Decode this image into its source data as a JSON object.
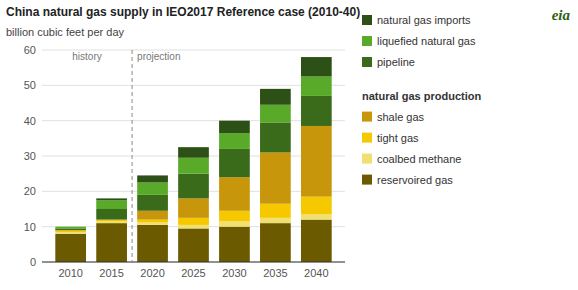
{
  "chart_data": {
    "type": "bar",
    "stacked": true,
    "title": "China natural gas supply in IEO2017 Reference case (2010-40)",
    "ylabel": "billion cubic feet per day",
    "x": [
      2010,
      2015,
      2020,
      2025,
      2030,
      2035,
      2040
    ],
    "xlim": [
      2006.5,
      2043.5
    ],
    "xticks": [
      2010,
      2015,
      2020,
      2025,
      2030,
      2035,
      2040
    ],
    "ylim": [
      0,
      60
    ],
    "yticks": [
      0,
      10,
      20,
      30,
      40,
      50,
      60
    ],
    "grid": true,
    "divider": 2017.5,
    "annotations": [
      "history",
      "projection",
      "natural gas production",
      "eia"
    ],
    "series": [
      {
        "name": "reservoired gas",
        "color": "#6b5a00",
        "values": [
          8.0,
          11.0,
          10.5,
          9.5,
          10.0,
          11.0,
          12.0
        ]
      },
      {
        "name": "coalbed methane",
        "color": "#f0e070",
        "values": [
          0.5,
          0.5,
          0.7,
          1.0,
          1.5,
          1.5,
          1.5
        ]
      },
      {
        "name": "tight gas",
        "color": "#f5c800",
        "values": [
          0.5,
          0.5,
          0.8,
          2.0,
          3.0,
          4.0,
          5.0
        ]
      },
      {
        "name": "shale gas",
        "color": "#c8960a",
        "values": [
          0.0,
          0.0,
          2.5,
          5.5,
          9.5,
          14.5,
          20.0
        ]
      },
      {
        "name": "pipeline",
        "color": "#3a6b1a",
        "values": [
          0.5,
          3.0,
          4.5,
          7.0,
          8.0,
          8.5,
          8.5
        ]
      },
      {
        "name": "liquefied natural gas",
        "color": "#5aaa2a",
        "values": [
          0.5,
          2.5,
          3.5,
          4.5,
          4.5,
          5.0,
          5.5
        ]
      },
      {
        "name": "natural gas imports",
        "color": "#2d5016",
        "values": [
          0.0,
          0.5,
          2.0,
          3.0,
          3.5,
          4.5,
          5.5
        ]
      }
    ]
  }
}
